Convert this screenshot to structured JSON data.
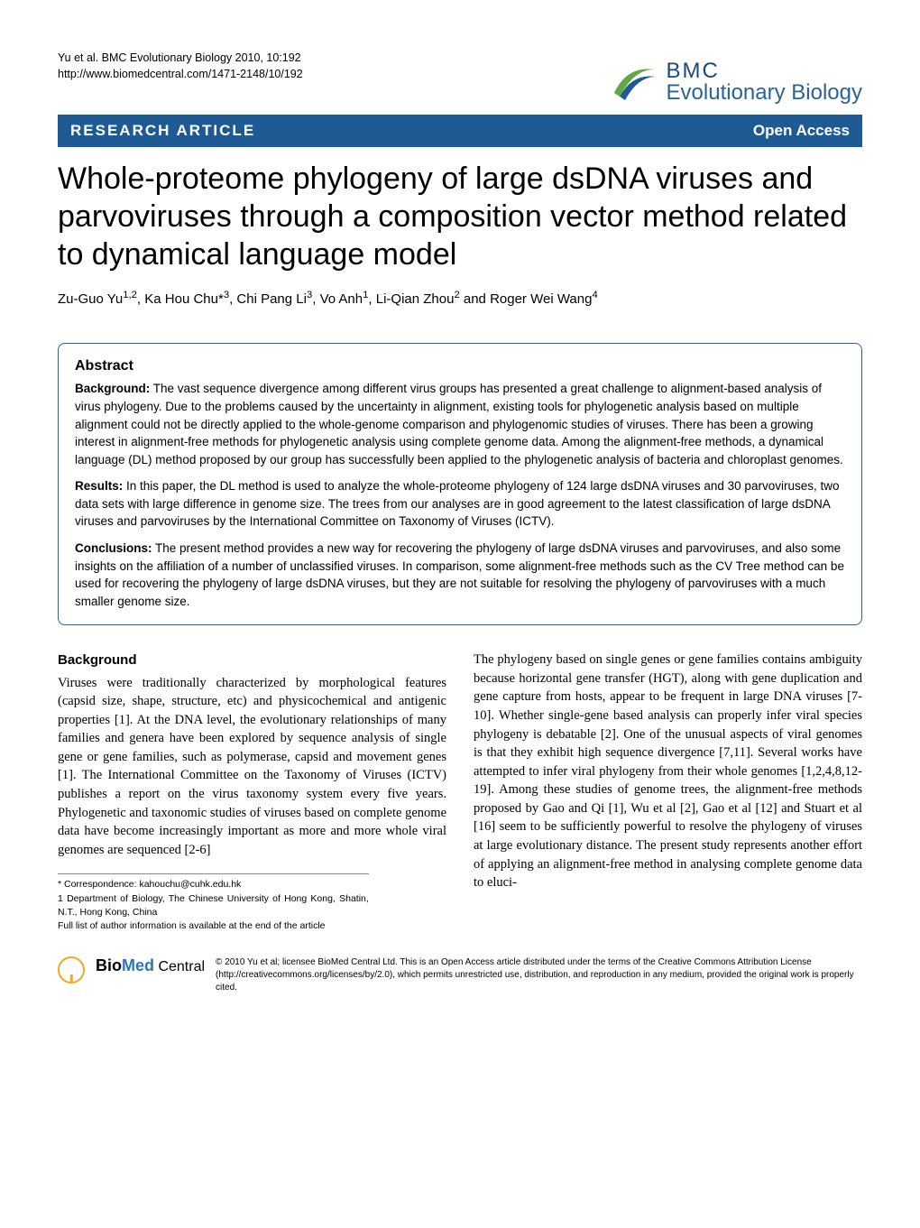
{
  "header": {
    "citation": "Yu et al. BMC Evolutionary Biology 2010, 10:192",
    "url": "http://www.biomedcentral.com/1471-2148/10/192"
  },
  "journal_logo": {
    "prefix": "BMC",
    "name": "Evolutionary Biology",
    "swoosh_color_outer": "#5fa843",
    "swoosh_color_inner": "#1e5b94"
  },
  "banner": {
    "article_type": "RESEARCH ARTICLE",
    "access": "Open Access",
    "bg_color": "#1e5b94",
    "text_color": "#ffffff"
  },
  "title": "Whole-proteome phylogeny of large dsDNA viruses and parvoviruses through a composition vector method related to dynamical language model",
  "authors_html": "Zu-Guo Yu<sup>1,2</sup>, Ka Hou Chu*<sup>3</sup>, Chi Pang Li<sup>3</sup>, Vo Anh<sup>1</sup>, Li-Qian Zhou<sup>2</sup> and Roger Wei Wang<sup>4</sup>",
  "abstract": {
    "heading": "Abstract",
    "sections": [
      {
        "label": "Background:",
        "text": " The vast sequence divergence among different virus groups has presented a great challenge to alignment-based analysis of virus phylogeny. Due to the problems caused by the uncertainty in alignment, existing tools for phylogenetic analysis based on multiple alignment could not be directly applied to the whole-genome comparison and phylogenomic studies of viruses. There has been a growing interest in alignment-free methods for phylogenetic analysis using complete genome data. Among the alignment-free methods, a dynamical language (DL) method proposed by our group has successfully been applied to the phylogenetic analysis of bacteria and chloroplast genomes."
      },
      {
        "label": "Results:",
        "text": " In this paper, the DL method is used to analyze the whole-proteome phylogeny of 124 large dsDNA viruses and 30 parvoviruses, two data sets with large difference in genome size. The trees from our analyses are in good agreement to the latest classification of large dsDNA viruses and parvoviruses by the International Committee on Taxonomy of Viruses (ICTV)."
      },
      {
        "label": "Conclusions:",
        "text": " The present method provides a new way for recovering the phylogeny of large dsDNA viruses and parvoviruses, and also some insights on the affiliation of a number of unclassified viruses. In comparison, some alignment-free methods such as the CV Tree method can be used for recovering the phylogeny of large dsDNA viruses, but they are not suitable for resolving the phylogeny of parvoviruses with a much smaller genome size."
      }
    ]
  },
  "body": {
    "heading": "Background",
    "col1": "Viruses were traditionally characterized by morphological features (capsid size, shape, structure, etc) and physicochemical and antigenic properties [1]. At the DNA level, the evolutionary relationships of many families and genera have been explored by sequence analysis of single gene or gene families, such as polymerase, capsid and movement genes [1]. The International Committee on the Taxonomy of Viruses (ICTV) publishes a report on the virus taxonomy system every five years. Phylogenetic and taxonomic studies of viruses based on complete genome data have become increasingly important as more and more whole viral genomes are sequenced [2-6]",
    "col2": "The phylogeny based on single genes or gene families contains ambiguity because horizontal gene transfer (HGT), along with gene duplication and gene capture from hosts, appear to be frequent in large DNA viruses [7-10]. Whether single-gene based analysis can properly infer viral species phylogeny is debatable [2]. One of the unusual aspects of viral genomes is that they exhibit high sequence divergence [7,11]. Several works have attempted to infer viral phylogeny from their whole genomes [1,2,4,8,12-19]. Among these studies of genome trees, the alignment-free methods proposed by Gao and Qi [1], Wu et al [2], Gao et al [12] and Stuart et al [16] seem to be sufficiently powerful to resolve the phylogeny of viruses at large evolutionary distance. The present study represents another effort of applying an alignment-free method in analysing complete genome data to eluci-"
  },
  "footnotes": {
    "correspondence": "* Correspondence: kahouchu@cuhk.edu.hk",
    "affiliation": "1 Department of Biology, The Chinese University of Hong Kong, Shatin, N.T., Hong Kong, China",
    "fulllist": "Full list of author information is available at the end of the article"
  },
  "footer": {
    "logo_bio": "Bio",
    "logo_med": "Med",
    "logo_central": " Central",
    "copyright": "© 2010 Yu et al; licensee BioMed Central Ltd. This is an Open Access article distributed under the terms of the Creative Commons Attribution License (http://creativecommons.org/licenses/by/2.0), which permits unrestricted use, distribution, and reproduction in any medium, provided the original work is properly cited.",
    "oa_ring_color": "#f5a623"
  },
  "colors": {
    "primary": "#1e5b94",
    "link": "#2a6496",
    "text": "#000000",
    "border": "#2a6496"
  }
}
